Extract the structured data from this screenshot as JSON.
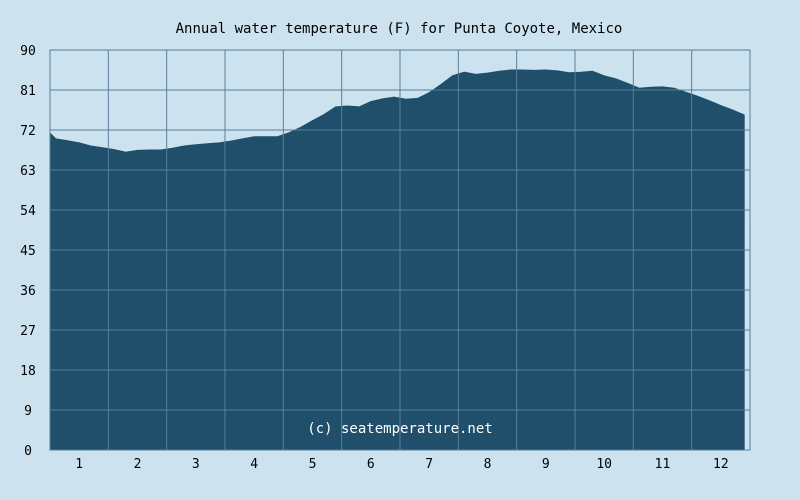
{
  "chart_data": {
    "type": "area",
    "title": "Annual water temperature (F) for Punta Coyote, Mexico",
    "watermark": "(c) seatemperature.net",
    "xlabel": "",
    "ylabel": "",
    "xlim": [
      0.5,
      12.5
    ],
    "ylim": [
      0,
      90
    ],
    "x_ticks": [
      "1",
      "2",
      "3",
      "4",
      "5",
      "6",
      "7",
      "8",
      "9",
      "10",
      "11",
      "12"
    ],
    "y_ticks": [
      "0",
      "9",
      "18",
      "27",
      "36",
      "45",
      "54",
      "63",
      "72",
      "81",
      "90"
    ],
    "grid": true,
    "legend": "none",
    "colors": {
      "fill": "#1f4f6b",
      "plot_bg": "#cce3ef",
      "grid": "#5a7f99",
      "watermark": "#ffffff"
    },
    "series": [
      {
        "x": [
          0.5,
          0.6,
          0.8,
          1.0,
          1.2,
          1.4,
          1.6,
          1.8,
          2.0,
          2.2,
          2.4,
          2.6,
          2.8,
          3.0,
          3.2,
          3.4,
          3.6,
          3.8,
          4.0,
          4.2,
          4.4,
          4.6,
          4.8,
          5.0,
          5.2,
          5.4,
          5.6,
          5.8,
          6.0,
          6.2,
          6.4,
          6.6,
          6.8,
          7.0,
          7.2,
          7.4,
          7.6,
          7.8,
          8.0,
          8.2,
          8.4,
          8.6,
          8.8,
          9.0,
          9.2,
          9.4,
          9.6,
          9.8,
          10.0,
          10.2,
          10.4,
          10.6,
          10.8,
          11.0,
          11.2,
          11.4,
          11.6,
          11.8,
          12.0,
          12.2,
          12.4
        ],
        "values": [
          71.3,
          70.0,
          69.6,
          69.1,
          68.4,
          68.0,
          67.6,
          67.0,
          67.4,
          67.5,
          67.5,
          67.9,
          68.4,
          68.7,
          68.9,
          69.1,
          69.5,
          70.0,
          70.5,
          70.5,
          70.5,
          71.4,
          72.6,
          74.1,
          75.5,
          77.2,
          77.4,
          77.2,
          78.4,
          79.0,
          79.4,
          78.9,
          79.1,
          80.4,
          82.2,
          84.2,
          85.0,
          84.5,
          84.8,
          85.2,
          85.5,
          85.5,
          85.4,
          85.5,
          85.3,
          84.9,
          85.0,
          85.2,
          84.2,
          83.5,
          82.5,
          81.4,
          81.6,
          81.7,
          81.4,
          80.5,
          79.6,
          78.6,
          77.5,
          76.5,
          75.4
        ]
      }
    ]
  }
}
